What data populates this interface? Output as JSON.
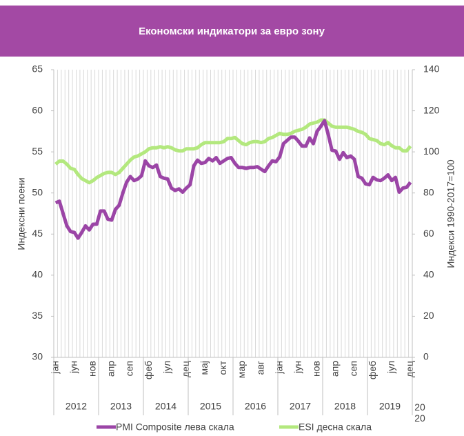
{
  "chart_data": {
    "type": "line",
    "title": "Економски индикатори за евро зону",
    "ylabel": "Индексни поени",
    "y2label": "Индекси 1990-2017=100",
    "categories": [
      "јан",
      null,
      null,
      null,
      null,
      "јун",
      null,
      null,
      null,
      null,
      "нов",
      null,
      null,
      null,
      null,
      "апр",
      null,
      null,
      null,
      null,
      "сеп",
      null,
      null,
      null,
      null,
      "феб",
      null,
      null,
      null,
      null,
      "јул",
      null,
      null,
      null,
      null,
      "дец",
      null,
      null,
      null,
      null,
      "мај",
      null,
      null,
      null,
      null,
      "окт",
      null,
      null,
      null,
      null,
      "мар",
      null,
      null,
      null,
      null,
      "авг",
      null,
      null,
      null,
      null,
      "јан",
      null,
      null,
      null,
      null,
      "јун",
      null,
      null,
      null,
      null,
      "нов",
      null,
      null,
      null,
      null,
      "апр",
      null,
      null,
      null,
      null,
      "сеп",
      null,
      null,
      null,
      null,
      "феб",
      null,
      null,
      null,
      null,
      "јул",
      null,
      null,
      null,
      null,
      "дец"
    ],
    "years": [
      "2012",
      "2013",
      "2014",
      "2015",
      "2016",
      "2017",
      "2018",
      "2019",
      "2020"
    ],
    "series": [
      {
        "name": "PMI Composite лева скала",
        "color": "#9b45a6",
        "values": [
          48.8,
          49.0,
          47.5,
          46.0,
          45.3,
          45.2,
          44.5,
          45.2,
          46.0,
          45.5,
          46.2,
          46.2,
          47.8,
          47.8,
          46.8,
          46.7,
          48.0,
          48.5,
          50.0,
          51.3,
          52.0,
          51.5,
          51.7,
          52.1,
          53.9,
          53.3,
          53.1,
          53.4,
          52.0,
          51.8,
          51.7,
          50.6,
          50.3,
          50.5,
          50.1,
          50.6,
          51.0,
          53.3,
          54.0,
          53.6,
          53.7,
          54.2,
          53.9,
          54.3,
          53.6,
          53.9,
          54.2,
          54.3,
          53.6,
          53.1,
          53.1,
          53.0,
          53.1,
          53.1,
          53.2,
          52.9,
          52.6,
          53.3,
          53.9,
          53.8,
          54.4,
          56.0,
          56.4,
          56.8,
          56.8,
          56.3,
          55.7,
          55.7,
          56.7,
          56.0,
          57.5,
          58.1,
          58.8,
          57.1,
          55.2,
          55.1,
          54.1,
          54.9,
          54.3,
          54.5,
          54.1,
          52.0,
          51.8,
          51.1,
          51.0,
          51.9,
          51.6,
          51.5,
          51.8,
          52.2,
          51.5,
          51.9,
          50.1,
          50.6,
          50.7,
          51.3
        ]
      },
      {
        "name": "ESI десна скала",
        "color": "#b3e87e",
        "axis": "y2",
        "values": [
          94,
          95.5,
          95.5,
          94,
          92,
          91.5,
          89,
          87,
          86,
          85,
          86,
          87.5,
          88.5,
          89.5,
          90,
          90,
          89,
          90,
          92,
          94,
          96,
          97.5,
          98,
          99,
          100,
          101.5,
          102,
          102,
          102.5,
          102,
          102.5,
          102,
          101,
          100.5,
          100.5,
          101.5,
          101.5,
          101.5,
          102,
          103.5,
          104.5,
          104.5,
          104.5,
          104.5,
          104.5,
          105,
          106.5,
          106.5,
          107,
          105.5,
          104,
          103.5,
          104.5,
          105,
          105,
          104.5,
          105,
          106.5,
          107,
          108,
          109,
          108.5,
          108.5,
          109,
          110,
          110.5,
          111,
          112,
          113.5,
          114,
          114.5,
          115.5,
          115.5,
          114,
          112.5,
          112,
          112,
          112,
          112,
          111.5,
          111,
          110,
          109.5,
          108.5,
          106.5,
          106,
          105.5,
          104,
          103.5,
          104.5,
          103,
          102,
          102,
          100.5,
          100.5,
          102.8
        ]
      }
    ],
    "ylim": [
      30,
      65
    ],
    "yticks": [
      30,
      35,
      40,
      45,
      50,
      55,
      60,
      65
    ],
    "y2lim": [
      0,
      140
    ],
    "y2ticks": [
      0,
      20,
      40,
      60,
      80,
      100,
      120,
      140
    ],
    "title_color": "#a349a4"
  }
}
